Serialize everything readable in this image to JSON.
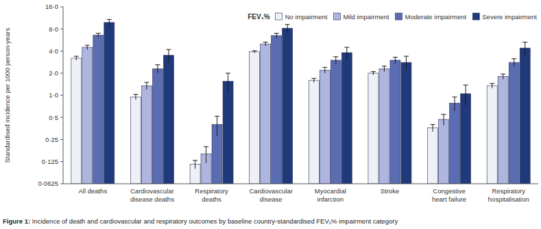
{
  "chart_data": {
    "type": "bar",
    "caption": "Figure 1: Incidence of death and cardiovascular and respiratory outcomes by baseline country-standardised FEV₁% impairment category",
    "y_label": "Standardised incidence per 1000 person-years",
    "legend_title": "FEV₁%",
    "legend": "top right",
    "log": "y",
    "grid": false,
    "categories": [
      "All deaths",
      "Cardiovascular disease deaths",
      "Respiratory deaths",
      "Cardiovascular disease",
      "Myocardial infarction",
      "Stroke",
      "Congestive heart failure",
      "Respiratory hospitalisation"
    ],
    "series": [
      {
        "name": "No impairment",
        "color": "#eef0f8",
        "values": [
          3.2,
          0.95,
          0.115,
          3.9,
          1.6,
          2.0,
          0.36,
          1.35
        ],
        "errors": [
          0.2,
          0.08,
          0.015,
          0.15,
          0.1,
          0.1,
          0.04,
          0.1
        ]
      },
      {
        "name": "Mild impairment",
        "color": "#aeb6e0",
        "values": [
          4.5,
          1.35,
          0.16,
          5.0,
          2.2,
          2.3,
          0.47,
          1.8
        ],
        "errors": [
          0.3,
          0.15,
          0.04,
          0.3,
          0.2,
          0.2,
          0.08,
          0.15
        ]
      },
      {
        "name": "Moderate impairment",
        "color": "#5b6db2",
        "values": [
          6.6,
          2.3,
          0.4,
          6.5,
          3.0,
          3.0,
          0.78,
          2.8
        ],
        "errors": [
          0.4,
          0.3,
          0.12,
          0.5,
          0.35,
          0.3,
          0.17,
          0.35
        ]
      },
      {
        "name": "Severe impairment",
        "color": "#1f3a7a",
        "values": [
          9.8,
          3.5,
          1.55,
          8.2,
          3.8,
          2.8,
          1.05,
          4.4
        ],
        "errors": [
          1.0,
          0.7,
          0.45,
          1.0,
          0.7,
          0.6,
          0.33,
          0.9
        ]
      }
    ],
    "ylim": [
      0.0625,
      16
    ],
    "yticks": [
      {
        "value": 0.0625,
        "label": "0·0625"
      },
      {
        "value": 0.125,
        "label": "0·125"
      },
      {
        "value": 0.25,
        "label": "0·25"
      },
      {
        "value": 0.5,
        "label": "0·5"
      },
      {
        "value": 1,
        "label": "1·0"
      },
      {
        "value": 2,
        "label": "2·0"
      },
      {
        "value": 4,
        "label": "4·0"
      },
      {
        "value": 8,
        "label": "8·0"
      },
      {
        "value": 16,
        "label": "16·0"
      }
    ]
  }
}
